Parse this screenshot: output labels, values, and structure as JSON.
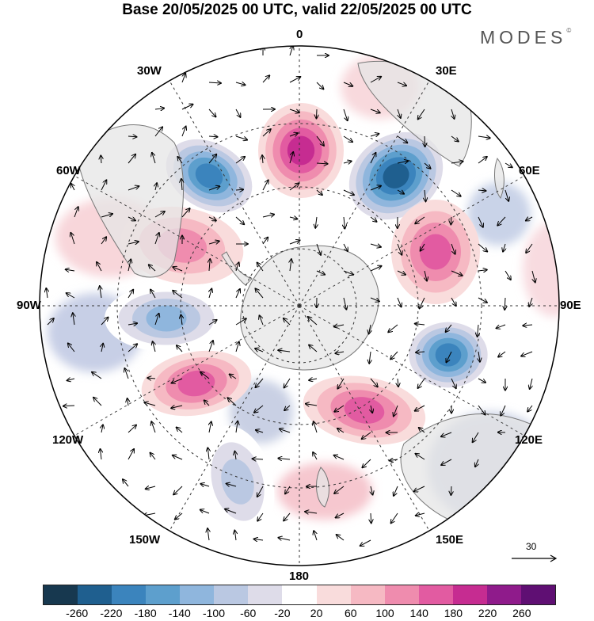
{
  "header": {
    "title": "Base 20/05/2025 00 UTC, valid 22/05/2025 00 UTC",
    "brand": "MODES",
    "brand_mark": "©"
  },
  "map": {
    "projection": "south-polar-stereographic",
    "longitude_labels": [
      "0",
      "30E",
      "60E",
      "90E",
      "120E",
      "150E",
      "180",
      "150W",
      "120W",
      "90W",
      "60W",
      "30W"
    ],
    "field_colors": {
      "land": "#e5e5e5",
      "coast": "#777777",
      "grid": "#333333"
    },
    "anomaly_cells": [
      {
        "label": "positive",
        "value": 200
      },
      {
        "label": "negative",
        "value": -220
      },
      {
        "label": "negative",
        "value": -260
      },
      {
        "label": "positive",
        "value": 160
      },
      {
        "label": "negative",
        "value": -220
      },
      {
        "label": "positive",
        "value": 100
      },
      {
        "label": "negative",
        "value": -100
      },
      {
        "label": "negative",
        "value": -140
      },
      {
        "label": "positive",
        "value": 140
      },
      {
        "label": "positive",
        "value": 140
      }
    ],
    "vector_reference": "30"
  },
  "colorbar": {
    "colors": [
      "#17384f",
      "#1f5f8f",
      "#3b84bd",
      "#5d9fcd",
      "#8fb6dd",
      "#bac8e2",
      "#dedce9",
      "#ffffff",
      "#f9dcdc",
      "#f6b9c3",
      "#ef8cae",
      "#e25ba1",
      "#c62c91",
      "#8f1b8b",
      "#5f0f73"
    ],
    "ticks": [
      "-260",
      "-220",
      "-180",
      "-140",
      "-100",
      "-60",
      "-20",
      "20",
      "60",
      "100",
      "140",
      "180",
      "220",
      "260"
    ]
  }
}
